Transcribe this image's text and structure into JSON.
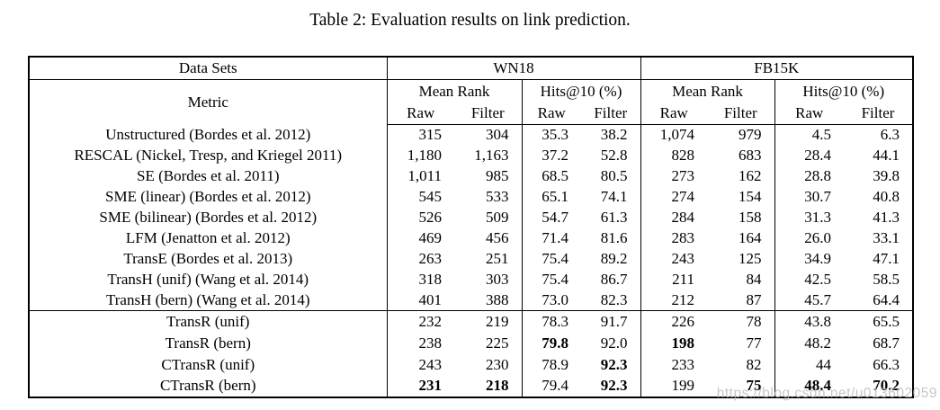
{
  "caption": "Table 2: Evaluation results on link prediction.",
  "watermark": "https://blog.csdn.net/u013602059",
  "header": {
    "datasets_label": "Data Sets",
    "metric_label": "Metric",
    "groups": [
      "WN18",
      "FB15K"
    ],
    "subgroups": [
      "Mean Rank",
      "Hits@10 (%)"
    ],
    "columns": [
      "Raw",
      "Filter"
    ]
  },
  "sections": [
    {
      "rows": [
        {
          "label": "Unstructured (Bordes et al. 2012)",
          "values": [
            "315",
            "304",
            "35.3",
            "38.2",
            "1,074",
            "979",
            "4.5",
            "6.3"
          ],
          "bold": []
        },
        {
          "label": "RESCAL (Nickel, Tresp, and Kriegel 2011)",
          "values": [
            "1,180",
            "1,163",
            "37.2",
            "52.8",
            "828",
            "683",
            "28.4",
            "44.1"
          ],
          "bold": []
        },
        {
          "label": "SE (Bordes et al. 2011)",
          "values": [
            "1,011",
            "985",
            "68.5",
            "80.5",
            "273",
            "162",
            "28.8",
            "39.8"
          ],
          "bold": []
        },
        {
          "label": "SME (linear) (Bordes et al. 2012)",
          "values": [
            "545",
            "533",
            "65.1",
            "74.1",
            "274",
            "154",
            "30.7",
            "40.8"
          ],
          "bold": []
        },
        {
          "label": "SME (bilinear) (Bordes et al. 2012)",
          "values": [
            "526",
            "509",
            "54.7",
            "61.3",
            "284",
            "158",
            "31.3",
            "41.3"
          ],
          "bold": []
        },
        {
          "label": "LFM (Jenatton et al. 2012)",
          "values": [
            "469",
            "456",
            "71.4",
            "81.6",
            "283",
            "164",
            "26.0",
            "33.1"
          ],
          "bold": []
        },
        {
          "label": "TransE (Bordes et al. 2013)",
          "values": [
            "263",
            "251",
            "75.4",
            "89.2",
            "243",
            "125",
            "34.9",
            "47.1"
          ],
          "bold": []
        },
        {
          "label": "TransH (unif) (Wang et al. 2014)",
          "values": [
            "318",
            "303",
            "75.4",
            "86.7",
            "211",
            "84",
            "42.5",
            "58.5"
          ],
          "bold": []
        },
        {
          "label": "TransH (bern) (Wang et al. 2014)",
          "values": [
            "401",
            "388",
            "73.0",
            "82.3",
            "212",
            "87",
            "45.7",
            "64.4"
          ],
          "bold": []
        }
      ]
    },
    {
      "rows": [
        {
          "label": "TransR (unif)",
          "values": [
            "232",
            "219",
            "78.3",
            "91.7",
            "226",
            "78",
            "43.8",
            "65.5"
          ],
          "bold": []
        },
        {
          "label": "TransR (bern)",
          "values": [
            "238",
            "225",
            "79.8",
            "92.0",
            "198",
            "77",
            "48.2",
            "68.7"
          ],
          "bold": [
            2,
            4
          ]
        },
        {
          "label": "CTransR (unif)",
          "values": [
            "243",
            "230",
            "78.9",
            "92.3",
            "233",
            "82",
            "44",
            "66.3"
          ],
          "bold": [
            3
          ]
        },
        {
          "label": "CTransR (bern)",
          "values": [
            "231",
            "218",
            "79.4",
            "92.3",
            "199",
            "75",
            "48.4",
            "70.2"
          ],
          "bold": [
            0,
            1,
            3,
            5,
            6,
            7
          ]
        }
      ]
    }
  ]
}
